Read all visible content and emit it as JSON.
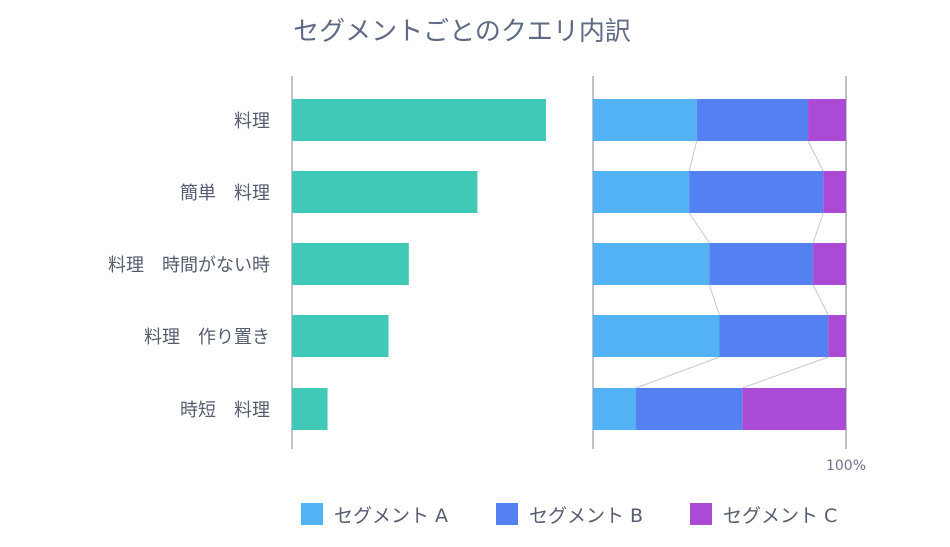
{
  "chart_data": {
    "type": "bar",
    "title": "セグメントごとのクエリ内訳",
    "categories": [
      "料理",
      "簡単　料理",
      "料理　時間がない時",
      "料理　作り置き",
      "時短　料理"
    ],
    "volume_chart": {
      "type": "bar",
      "orientation": "horizontal",
      "values": [
        100,
        73,
        46,
        38,
        14
      ],
      "color": "#40c9b7"
    },
    "breakdown_chart": {
      "type": "bar",
      "stacked": true,
      "percent": true,
      "xlim": [
        0,
        100
      ],
      "tick_label": "100%",
      "series": [
        {
          "name": "セグメント A",
          "color": "#52b2f3",
          "values": [
            41,
            38,
            46,
            50,
            17
          ]
        },
        {
          "name": "セグメント B",
          "color": "#5481f2",
          "values": [
            44,
            53,
            41,
            43,
            42
          ]
        },
        {
          "name": "セグメント C",
          "color": "#aa4ad5",
          "values": [
            15,
            9,
            13,
            7,
            41
          ]
        }
      ],
      "connector_lines": true
    },
    "legend_position": "bottom"
  }
}
